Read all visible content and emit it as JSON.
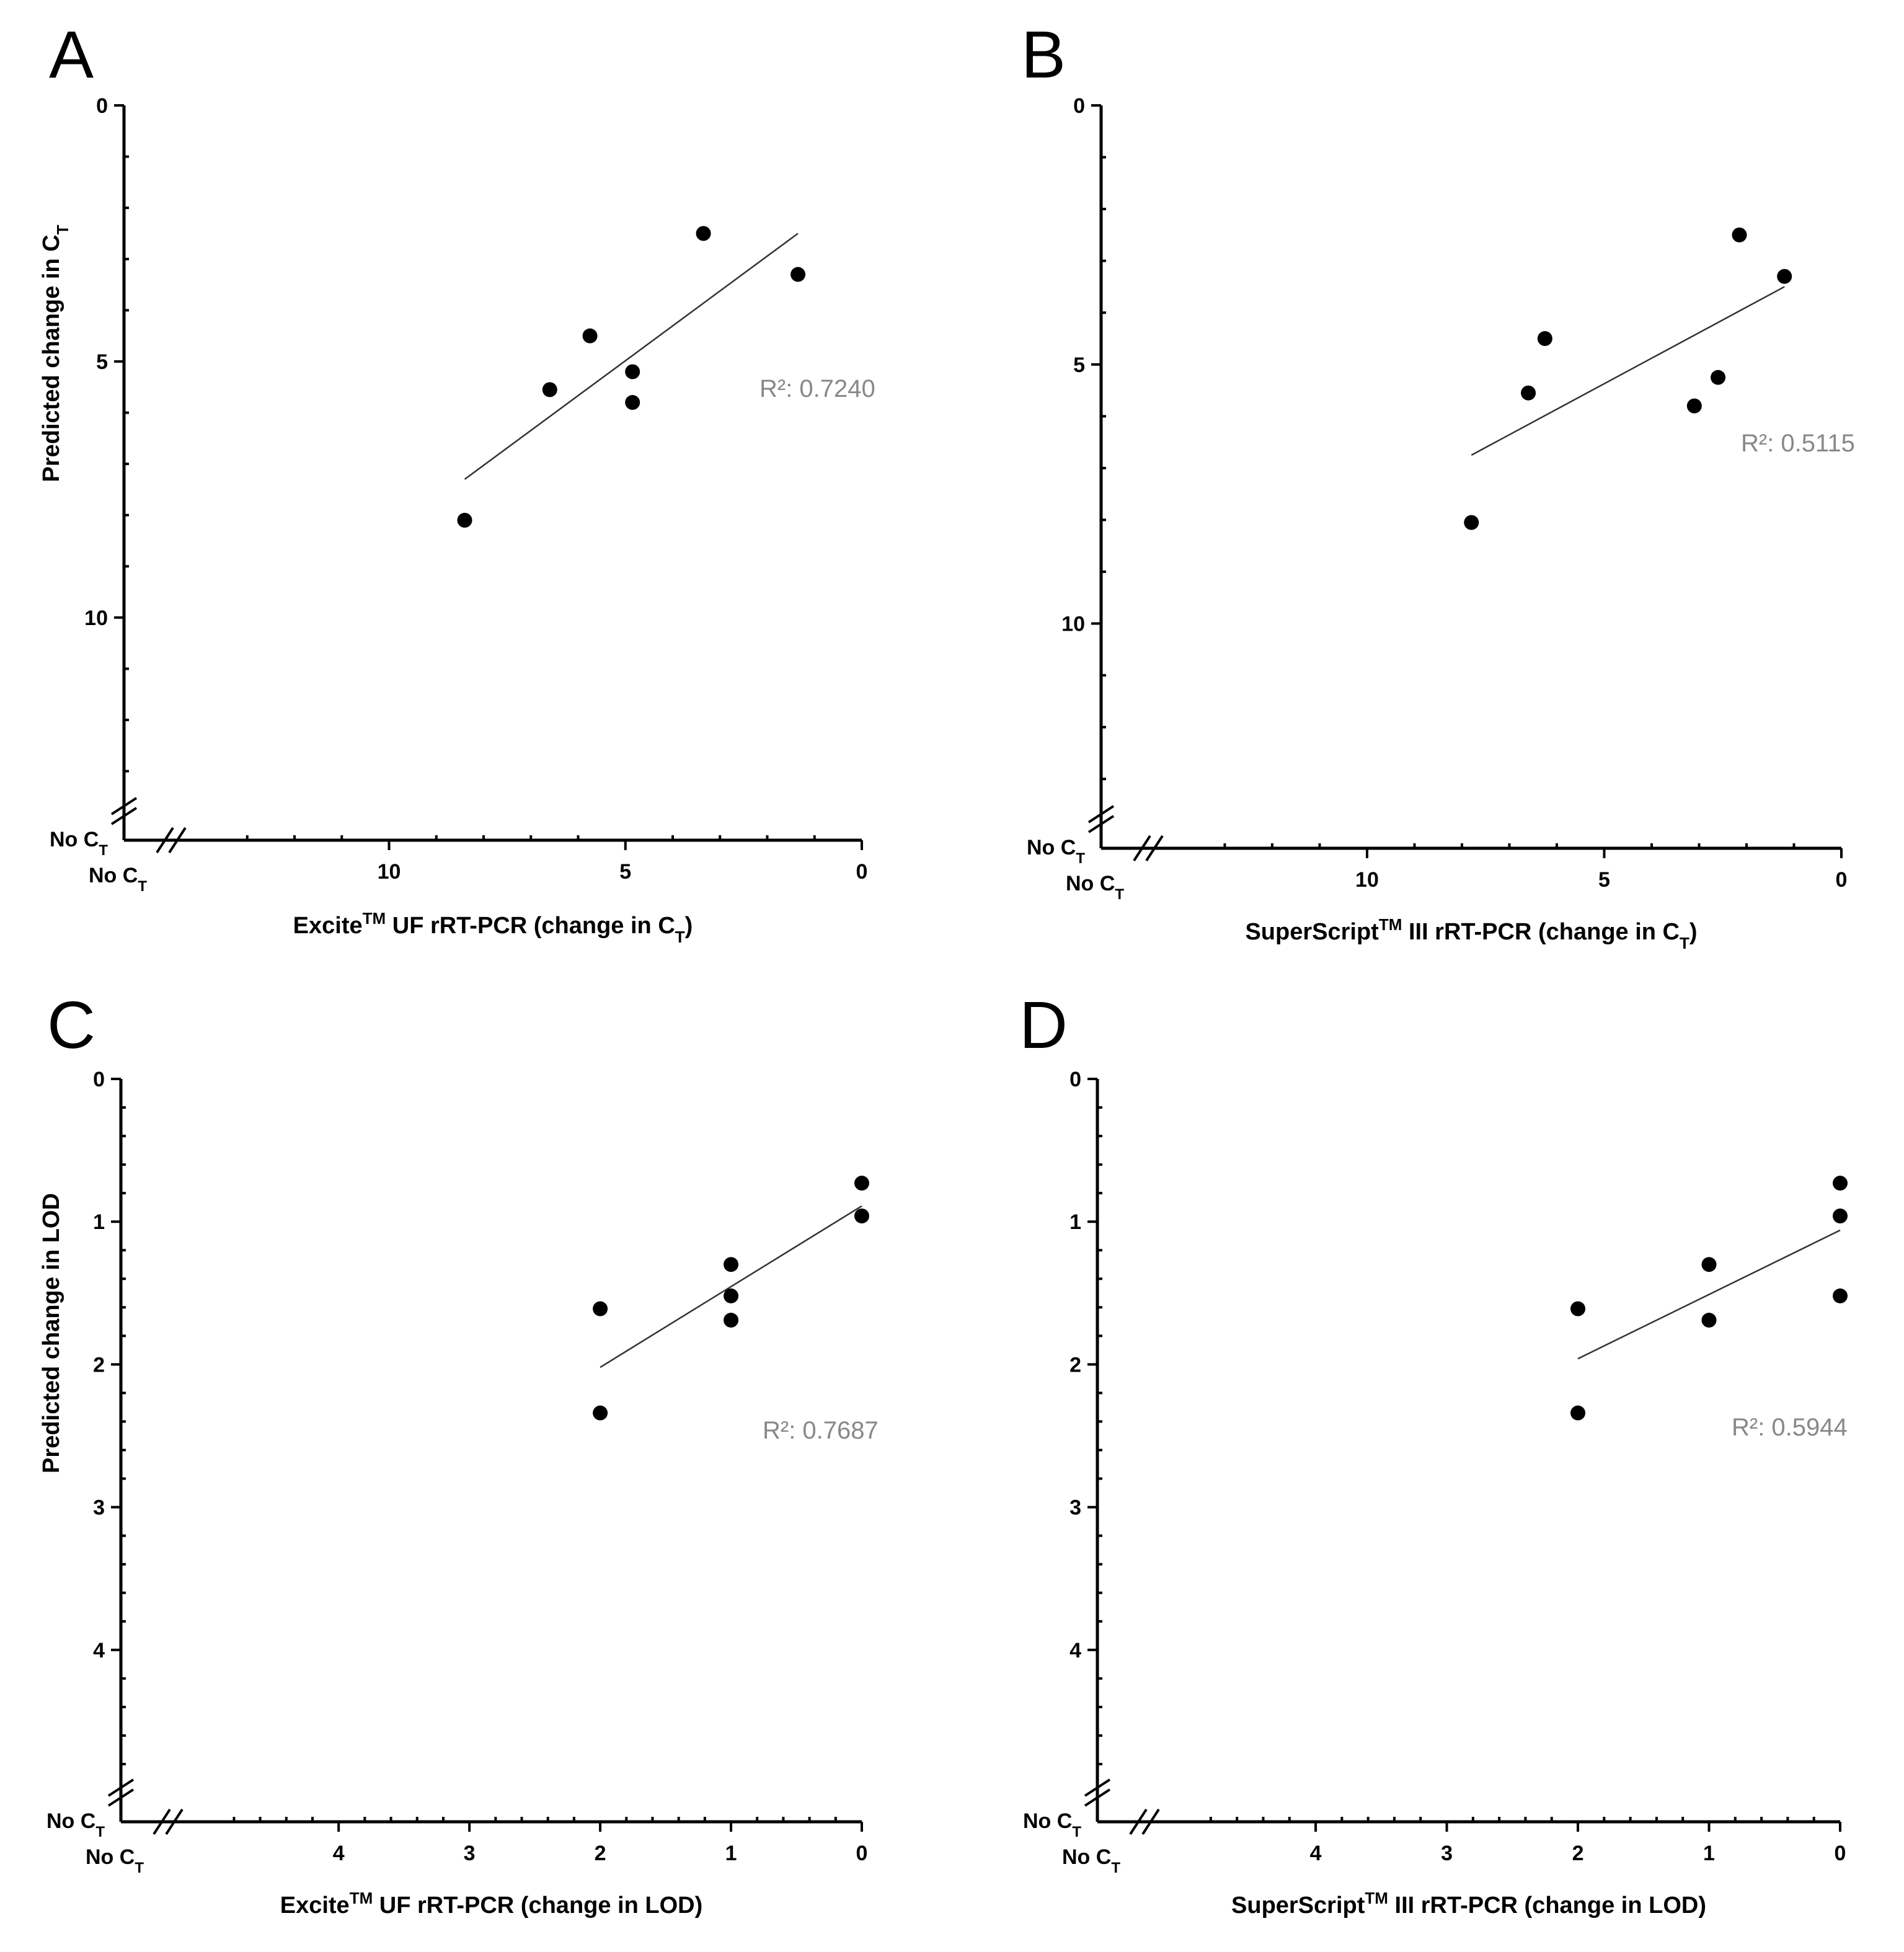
{
  "chart_data": [
    {
      "panel": "A",
      "type": "scatter",
      "xlabel": {
        "pre": "Excite",
        "sup": "TM",
        "post": " UF rRT-PCR (change in C",
        "sub": "T",
        "end": ")"
      },
      "ylabel": {
        "pre": "Predicted change in C",
        "sub": "T",
        "end": ""
      },
      "xlim": [
        13.5,
        0
      ],
      "ylim": [
        0,
        13.5
      ],
      "x_ticks": [
        10,
        5,
        0
      ],
      "y_ticks": [
        0,
        5,
        10
      ],
      "no_ct_label": {
        "main": "No C",
        "sub": "T"
      },
      "r2_text": "R²: 0.7240",
      "points": [
        {
          "x": 8.4,
          "y": 8.1
        },
        {
          "x": 6.6,
          "y": 5.55
        },
        {
          "x": 5.75,
          "y": 4.5
        },
        {
          "x": 4.85,
          "y": 5.2
        },
        {
          "x": 4.85,
          "y": 5.8
        },
        {
          "x": 3.35,
          "y": 2.5
        },
        {
          "x": 1.35,
          "y": 3.3
        }
      ],
      "fit": {
        "x1": 8.4,
        "y1": 7.3,
        "x2": 1.35,
        "y2": 2.5
      }
    },
    {
      "panel": "B",
      "type": "scatter",
      "xlabel": {
        "pre": "SuperScript",
        "sup": "TM",
        "post": " III rRT-PCR (change in C",
        "sub": "T",
        "end": ")"
      },
      "ylabel": null,
      "xlim": [
        13.5,
        0
      ],
      "ylim": [
        0,
        13.5
      ],
      "x_ticks": [
        10,
        5,
        0
      ],
      "y_ticks": [
        0,
        5,
        10
      ],
      "no_ct_label": {
        "main": "No C",
        "sub": "T"
      },
      "r2_text": "R²: 0.5115",
      "points": [
        {
          "x": 7.8,
          "y": 8.05
        },
        {
          "x": 6.6,
          "y": 5.55
        },
        {
          "x": 6.25,
          "y": 4.5
        },
        {
          "x": 3.1,
          "y": 5.8
        },
        {
          "x": 2.6,
          "y": 5.25
        },
        {
          "x": 2.15,
          "y": 2.5
        },
        {
          "x": 1.2,
          "y": 3.3
        }
      ],
      "fit": {
        "x1": 7.8,
        "y1": 6.75,
        "x2": 1.2,
        "y2": 3.5
      }
    },
    {
      "panel": "C",
      "type": "scatter",
      "xlabel": {
        "pre": "Excite",
        "sup": "TM",
        "post": " UF rRT-PCR (change in LOD)",
        "sub": "",
        "end": ""
      },
      "ylabel": {
        "pre": "Predicted change in LOD",
        "sub": "",
        "end": ""
      },
      "xlim": [
        4.9,
        0
      ],
      "ylim": [
        0,
        4.9
      ],
      "x_ticks": [
        4,
        3,
        2,
        1,
        0
      ],
      "y_ticks": [
        0,
        1,
        2,
        3,
        4
      ],
      "no_ct_label": {
        "main": "No C",
        "sub": "T"
      },
      "r2_text": "R²: 0.7687",
      "points": [
        {
          "x": 2,
          "y": 1.61
        },
        {
          "x": 2,
          "y": 2.34
        },
        {
          "x": 1,
          "y": 1.3
        },
        {
          "x": 1,
          "y": 1.52
        },
        {
          "x": 1,
          "y": 1.69
        },
        {
          "x": 0,
          "y": 0.73
        },
        {
          "x": 0,
          "y": 0.96
        }
      ],
      "fit": {
        "x1": 2,
        "y1": 2.02,
        "x2": 0,
        "y2": 0.89
      }
    },
    {
      "panel": "D",
      "type": "scatter",
      "xlabel": {
        "pre": "SuperScript",
        "sup": "TM",
        "post": " III rRT-PCR (change in LOD)",
        "sub": "",
        "end": ""
      },
      "ylabel": null,
      "xlim": [
        4.9,
        0
      ],
      "ylim": [
        0,
        4.9
      ],
      "x_ticks": [
        4,
        3,
        2,
        1,
        0
      ],
      "y_ticks": [
        0,
        1,
        2,
        3,
        4
      ],
      "no_ct_label": {
        "main": "No C",
        "sub": "T"
      },
      "r2_text": "R²: 0.5944",
      "points": [
        {
          "x": 2,
          "y": 1.61
        },
        {
          "x": 2,
          "y": 2.34
        },
        {
          "x": 1,
          "y": 1.3
        },
        {
          "x": 1,
          "y": 1.69
        },
        {
          "x": 0,
          "y": 0.73
        },
        {
          "x": 0,
          "y": 0.96
        },
        {
          "x": 0,
          "y": 1.52
        }
      ],
      "fit": {
        "x1": 2,
        "y1": 1.96,
        "x2": 0,
        "y2": 1.06
      }
    }
  ]
}
